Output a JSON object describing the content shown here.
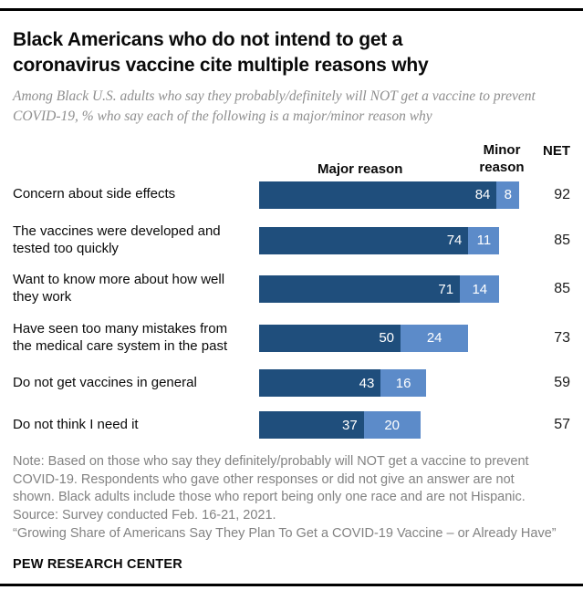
{
  "header": {
    "title": "Black Americans who do not intend to get a coronavirus vaccine cite multiple reasons why",
    "subtitle": "Among Black U.S. adults who say they probably/definitely will NOT get a vaccine to prevent COVID-19, % who say each of the following is a major/minor reason why"
  },
  "chart_data": {
    "type": "bar",
    "orientation": "horizontal",
    "stacked": true,
    "legend": {
      "major": "Major reason",
      "minor": "Minor reason",
      "net": "NET"
    },
    "categories": [
      "Concern about side effects",
      "The vaccines were developed and tested too quickly",
      "Want to know more about how well they work",
      "Have seen too many mistakes from the medical care system in the past",
      "Do not get vaccines in general",
      "Do not think I need it"
    ],
    "series": [
      {
        "name": "Major reason",
        "color": "#1f4e7c",
        "values": [
          84,
          74,
          71,
          50,
          43,
          37
        ]
      },
      {
        "name": "Minor reason",
        "color": "#5c8bc9",
        "values": [
          8,
          11,
          14,
          24,
          16,
          20
        ]
      }
    ],
    "net_values": [
      92,
      85,
      85,
      73,
      59,
      57
    ],
    "xlim": [
      0,
      100
    ],
    "grid": false,
    "legend_position": "top"
  },
  "footer": {
    "note_lines": [
      "Note: Based on those who say they definitely/probably will NOT get a vaccine to prevent",
      "COVID-19. Respondents who gave other responses or did not give an answer are not",
      "shown. Black adults include those who report being only one race and are not Hispanic.",
      "Source: Survey conducted Feb. 16-21, 2021.",
      "“Growing Share of Americans Say They Plan To Get a COVID-19 Vaccine – or Already Have”"
    ],
    "brand": "PEW RESEARCH CENTER"
  }
}
